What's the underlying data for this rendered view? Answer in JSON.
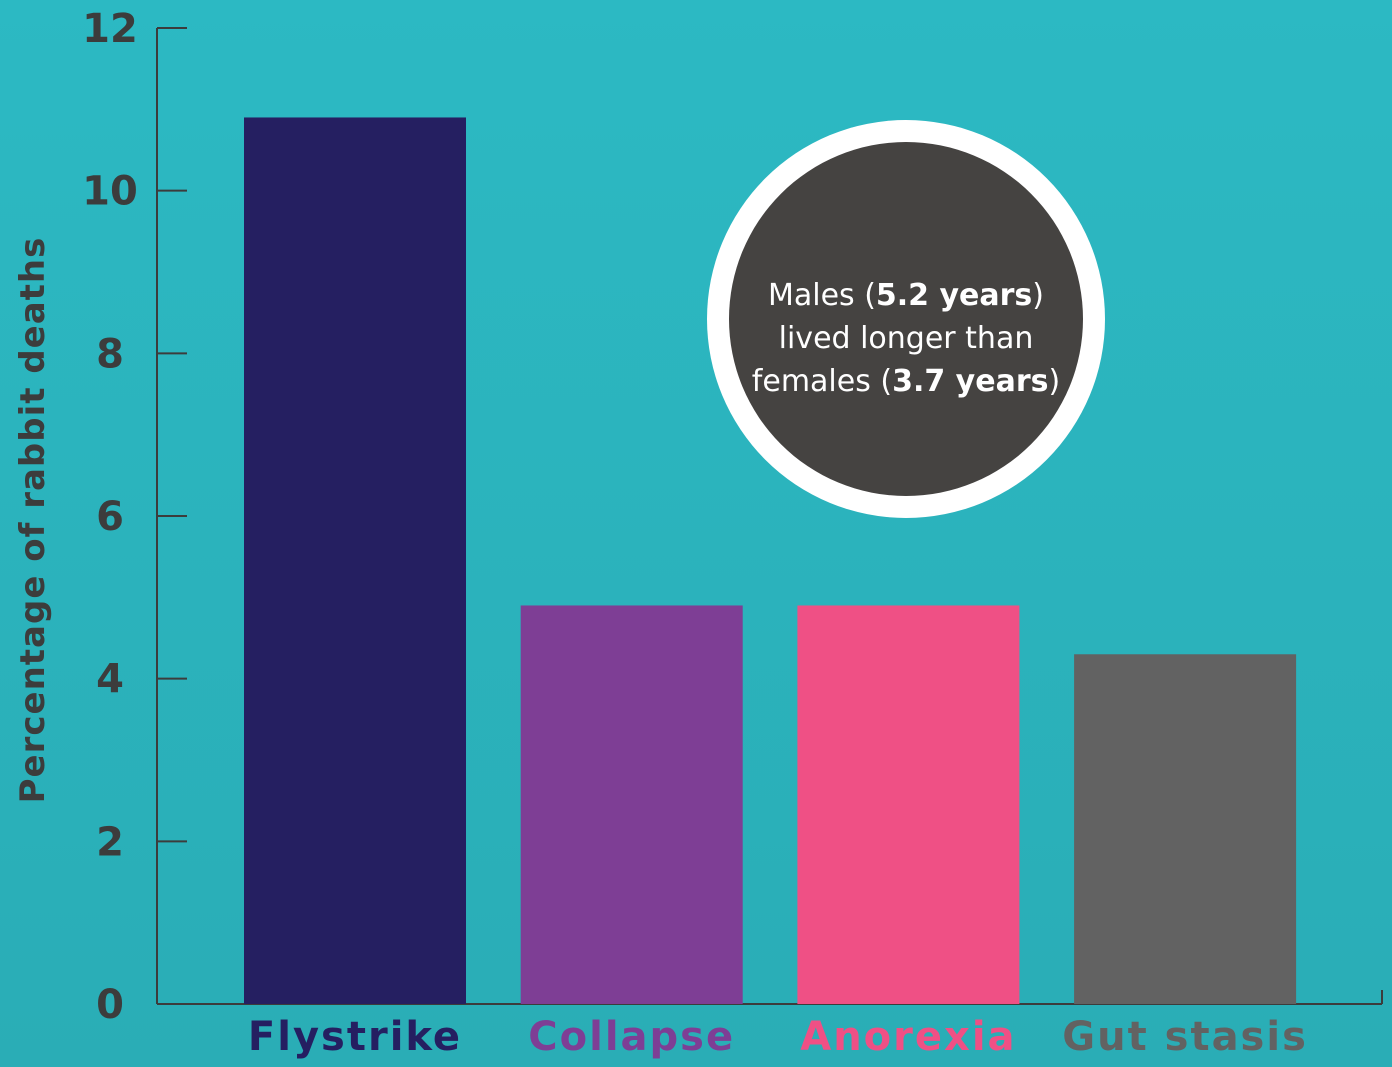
{
  "chart_data": {
    "type": "bar",
    "categories": [
      "Flystrike",
      "Collapse",
      "Anorexia",
      "Gut stasis"
    ],
    "values": [
      10.9,
      4.9,
      4.9,
      4.3
    ],
    "colors": [
      "#251f61",
      "#7e3e95",
      "#ef5085",
      "#626262"
    ],
    "ylabel": "Percentage of rabbit deaths",
    "ylim": [
      0,
      12
    ],
    "yticks": [
      "0",
      "2",
      "4",
      "6",
      "8",
      "10",
      "12"
    ],
    "grid": false
  },
  "callout": {
    "line1_pre": "Males (",
    "line1_bold": "5.2 years",
    "line1_post": ")",
    "line2": "lived longer than",
    "line3_pre": "females (",
    "line3_bold": "3.7 years",
    "line3_post": ")"
  }
}
